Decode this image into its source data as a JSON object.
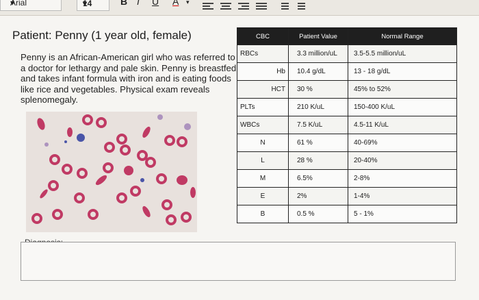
{
  "toolbar": {
    "font_name": "Arial",
    "font_size": "14",
    "bold": "B",
    "italic": "I",
    "underline": "U",
    "font_color": "A"
  },
  "patient": {
    "title": "Patient:  Penny (1 year old, female)",
    "description": "Penny is an African-American girl who was referred to a doctor for lethargy and pale skin. Penny is breastfed and takes infant formula with iron and is eating foods like rice and vegetables. Physical exam reveals splenomegaly."
  },
  "table": {
    "headers": [
      "CBC",
      "Patient Value",
      "Normal Range"
    ],
    "rows": [
      {
        "test": "RBCs",
        "value": "3.3 million/uL",
        "range": "3.5-5.5 million/uL",
        "indent": 0
      },
      {
        "test": "Hb",
        "value": "10.4  g/dL",
        "range": "13 - 18 g/dL",
        "indent": 2
      },
      {
        "test": "HCT",
        "value": "30 %",
        "range": "45% to 52%",
        "indent": 2
      },
      {
        "test": "PLTs",
        "value": "210 K/uL",
        "range": "150-400 K/uL",
        "indent": 0
      },
      {
        "test": "WBCs",
        "value": "7.5 K/uL",
        "range": "4.5-11 K/uL",
        "indent": 0
      },
      {
        "test": "N",
        "value": "61 %",
        "range": "40-69%",
        "indent": 1
      },
      {
        "test": "L",
        "value": "28  %",
        "range": "20-40%",
        "indent": 1
      },
      {
        "test": "M",
        "value": "6.5%",
        "range": "2-8%",
        "indent": 1
      },
      {
        "test": "E",
        "value": "2%",
        "range": "1-4%",
        "indent": 1
      },
      {
        "test": "B",
        "value": "0.5 %",
        "range": "5 - 1%",
        "indent": 1
      }
    ]
  },
  "diagnosis": {
    "label": "Diagnosis:"
  }
}
